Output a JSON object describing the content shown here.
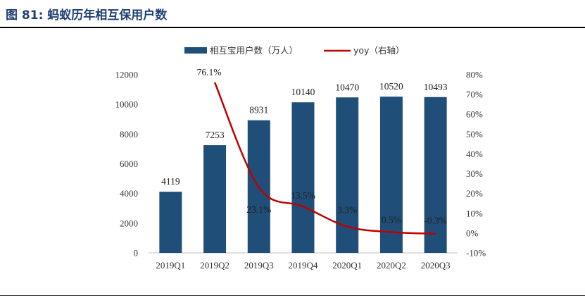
{
  "figure": {
    "title": "图 81:  蚂蚁历年相互保用户数"
  },
  "colors": {
    "bar": "#1f4e79",
    "line": "#c00000",
    "title": "#1f3f73"
  },
  "chart_data": {
    "type": "bar",
    "categories": [
      "2019Q1",
      "2019Q2",
      "2019Q3",
      "2019Q4",
      "2020Q1",
      "2020Q2",
      "2020Q3"
    ],
    "series": [
      {
        "name": "相互宝用户数（万人）",
        "type": "bar",
        "axis": "left",
        "values": [
          4119,
          7253,
          8931,
          10140,
          10470,
          10520,
          10493
        ],
        "labels": [
          "4119",
          "7253",
          "8931",
          "10140",
          "10470",
          "10520",
          "10493"
        ]
      },
      {
        "name": "yoy（右轴）",
        "type": "line",
        "axis": "right",
        "values": [
          null,
          76.1,
          23.1,
          13.5,
          3.3,
          0.5,
          -0.3
        ],
        "labels": [
          "",
          "76.1%",
          "23.1%",
          "13.5%",
          "3.3%",
          "0.5%",
          "-0.3%"
        ]
      }
    ],
    "y_left": {
      "range": [
        0,
        12000
      ],
      "ticks": [
        0,
        2000,
        4000,
        6000,
        8000,
        10000,
        12000
      ],
      "tick_labels": [
        "0",
        "2000",
        "4000",
        "6000",
        "8000",
        "10000",
        "12000"
      ]
    },
    "y_right": {
      "range": [
        -10,
        80
      ],
      "ticks": [
        -10,
        0,
        10,
        20,
        30,
        40,
        50,
        60,
        70,
        80
      ],
      "tick_labels": [
        "-10%",
        "0%",
        "10%",
        "20%",
        "30%",
        "40%",
        "50%",
        "60%",
        "70%",
        "80%"
      ]
    },
    "grid": false,
    "legend": "top-center"
  }
}
